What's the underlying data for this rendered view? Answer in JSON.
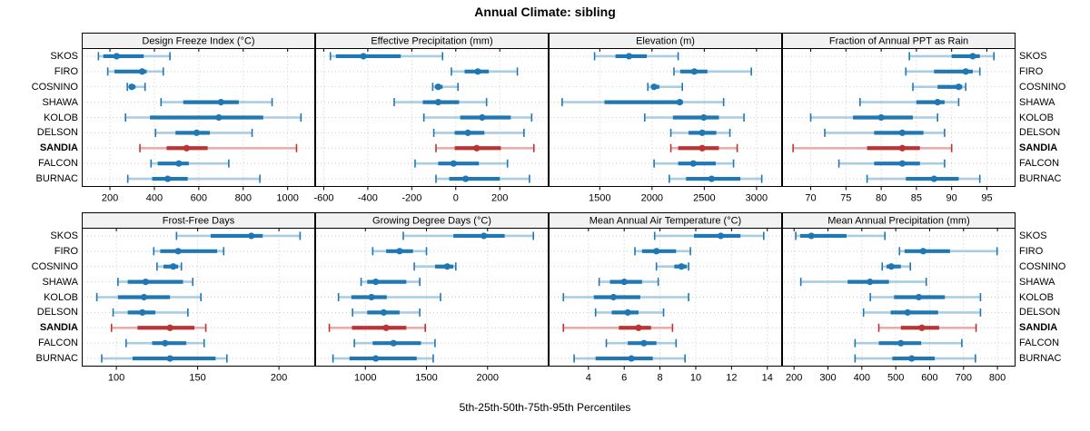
{
  "title": "Annual Climate: sibling",
  "caption": "5th-25th-50th-75th-95th Percentiles",
  "sites": [
    "SKOS",
    "FIRO",
    "COSNINO",
    "SHAWA",
    "KOLOB",
    "DELSON",
    "SANDIA",
    "FALCON",
    "BURNAC"
  ],
  "highlight_site": "SANDIA",
  "colors": {
    "blue": "#1F77B4",
    "blue_light": "#A9CEE3",
    "red": "#BB3333",
    "red_light": "#E6AFAB",
    "grid": "#C9C9C9",
    "header_bg": "#F2F2F2",
    "border": "#000000"
  },
  "chart_data": [
    {
      "type": "percentile-range",
      "title": "Design Freeze Index (°C)",
      "row": 0,
      "col": 0,
      "xlim": [
        75,
        1122
      ],
      "ticks": [
        200,
        400,
        600,
        800,
        1000
      ],
      "percentile_labels": [
        "5th",
        "25th",
        "50th",
        "75th",
        "95th"
      ],
      "grid": true,
      "series": [
        {
          "name": "SKOS",
          "percentiles": [
            148,
            170,
            230,
            352,
            470
          ]
        },
        {
          "name": "FIRO",
          "percentiles": [
            190,
            220,
            345,
            365,
            440
          ]
        },
        {
          "name": "COSNINO",
          "percentiles": [
            278,
            288,
            298,
            315,
            358
          ]
        },
        {
          "name": "SHAWA",
          "percentiles": [
            430,
            530,
            700,
            780,
            930
          ]
        },
        {
          "name": "KOLOB",
          "percentiles": [
            270,
            380,
            690,
            890,
            1060
          ]
        },
        {
          "name": "DELSON",
          "percentiles": [
            405,
            495,
            590,
            650,
            840
          ]
        },
        {
          "name": "SANDIA",
          "percentiles": [
            335,
            455,
            545,
            640,
            1040
          ]
        },
        {
          "name": "FALCON",
          "percentiles": [
            385,
            415,
            510,
            555,
            735
          ]
        },
        {
          "name": "BURNAC",
          "percentiles": [
            280,
            390,
            460,
            550,
            875
          ]
        }
      ]
    },
    {
      "type": "percentile-range",
      "title": "Effective Precipitation (mm)",
      "row": 0,
      "col": 1,
      "xlim": [
        -637,
        420
      ],
      "ticks": [
        -600,
        -400,
        -200,
        0,
        200
      ],
      "percentile_labels": [
        "5th",
        "25th",
        "50th",
        "75th",
        "95th"
      ],
      "grid": true,
      "series": [
        {
          "name": "SKOS",
          "percentiles": [
            -570,
            -545,
            -420,
            -250,
            -60
          ]
        },
        {
          "name": "FIRO",
          "percentiles": [
            -20,
            40,
            100,
            150,
            280
          ]
        },
        {
          "name": "COSNINO",
          "percentiles": [
            -105,
            -95,
            -80,
            -60,
            10
          ]
        },
        {
          "name": "SHAWA",
          "percentiles": [
            -280,
            -150,
            -80,
            15,
            140
          ]
        },
        {
          "name": "KOLOB",
          "percentiles": [
            -145,
            20,
            120,
            250,
            345
          ]
        },
        {
          "name": "DELSON",
          "percentiles": [
            -100,
            -5,
            55,
            130,
            310
          ]
        },
        {
          "name": "SANDIA",
          "percentiles": [
            -90,
            -5,
            95,
            205,
            355
          ]
        },
        {
          "name": "FALCON",
          "percentiles": [
            -185,
            -80,
            -10,
            105,
            235
          ]
        },
        {
          "name": "BURNAC",
          "percentiles": [
            -90,
            -30,
            45,
            200,
            335
          ]
        }
      ]
    },
    {
      "type": "percentile-range",
      "title": "Elevation (m)",
      "row": 0,
      "col": 2,
      "xlim": [
        1015,
        3240
      ],
      "ticks": [
        1500,
        2000,
        2500,
        3000
      ],
      "percentile_labels": [
        "5th",
        "25th",
        "50th",
        "75th",
        "95th"
      ],
      "grid": true,
      "series": [
        {
          "name": "SKOS",
          "percentiles": [
            1450,
            1650,
            1780,
            1950,
            2250
          ]
        },
        {
          "name": "FIRO",
          "percentiles": [
            2210,
            2270,
            2405,
            2530,
            2950
          ]
        },
        {
          "name": "COSNINO",
          "percentiles": [
            1960,
            1990,
            2020,
            2070,
            2290
          ]
        },
        {
          "name": "SHAWA",
          "percentiles": [
            1140,
            1545,
            2265,
            2295,
            2685
          ]
        },
        {
          "name": "KOLOB",
          "percentiles": [
            1930,
            2200,
            2495,
            2640,
            2880
          ]
        },
        {
          "name": "DELSON",
          "percentiles": [
            2180,
            2350,
            2480,
            2615,
            2745
          ]
        },
        {
          "name": "SANDIA",
          "percentiles": [
            2180,
            2250,
            2480,
            2640,
            2815
          ]
        },
        {
          "name": "FALCON",
          "percentiles": [
            2020,
            2250,
            2395,
            2610,
            2780
          ]
        },
        {
          "name": "BURNAC",
          "percentiles": [
            2165,
            2325,
            2570,
            2845,
            3050
          ]
        }
      ]
    },
    {
      "type": "percentile-range",
      "title": "Fraction of Annual PPT as Rain",
      "row": 0,
      "col": 3,
      "xlim": [
        66,
        99
      ],
      "ticks": [
        70,
        75,
        80,
        85,
        90,
        95
      ],
      "percentile_labels": [
        "5th",
        "25th",
        "50th",
        "75th",
        "95th"
      ],
      "grid": true,
      "series": [
        {
          "name": "SKOS",
          "percentiles": [
            84,
            90,
            93,
            94,
            96
          ]
        },
        {
          "name": "FIRO",
          "percentiles": [
            83.5,
            87.5,
            92,
            93,
            94
          ]
        },
        {
          "name": "COSNINO",
          "percentiles": [
            84.5,
            88,
            91,
            91.5,
            92
          ]
        },
        {
          "name": "SHAWA",
          "percentiles": [
            77,
            85,
            88,
            89,
            91
          ]
        },
        {
          "name": "KOLOB",
          "percentiles": [
            70,
            76,
            80,
            84.5,
            88
          ]
        },
        {
          "name": "DELSON",
          "percentiles": [
            72,
            79,
            83,
            86,
            89
          ]
        },
        {
          "name": "SANDIA",
          "percentiles": [
            67.5,
            78,
            83,
            85.5,
            90
          ]
        },
        {
          "name": "FALCON",
          "percentiles": [
            74,
            79,
            83,
            85.5,
            89
          ]
        },
        {
          "name": "BURNAC",
          "percentiles": [
            78,
            83.5,
            87.5,
            91,
            94
          ]
        }
      ]
    },
    {
      "type": "percentile-range",
      "title": "Frost-Free Days",
      "row": 1,
      "col": 0,
      "xlim": [
        79,
        222
      ],
      "ticks": [
        100,
        150,
        200
      ],
      "percentile_labels": [
        "5th",
        "25th",
        "50th",
        "75th",
        "95th"
      ],
      "grid": true,
      "series": [
        {
          "name": "SKOS",
          "percentiles": [
            137,
            158,
            183,
            190,
            213
          ]
        },
        {
          "name": "FIRO",
          "percentiles": [
            123,
            127,
            138,
            162,
            166
          ]
        },
        {
          "name": "COSNINO",
          "percentiles": [
            125,
            129,
            135,
            138,
            140
          ]
        },
        {
          "name": "SHAWA",
          "percentiles": [
            101,
            107,
            118,
            141,
            147
          ]
        },
        {
          "name": "KOLOB",
          "percentiles": [
            88,
            101,
            117,
            133,
            152
          ]
        },
        {
          "name": "DELSON",
          "percentiles": [
            98,
            107,
            116,
            124,
            144
          ]
        },
        {
          "name": "SANDIA",
          "percentiles": [
            97,
            113,
            133,
            148,
            155
          ]
        },
        {
          "name": "FALCON",
          "percentiles": [
            106,
            122,
            130,
            143,
            154
          ]
        },
        {
          "name": "BURNAC",
          "percentiles": [
            91,
            110,
            133,
            161,
            168
          ]
        }
      ]
    },
    {
      "type": "percentile-range",
      "title": "Growing Degree Days (°C)",
      "row": 1,
      "col": 1,
      "xlim": [
        593,
        2496
      ],
      "ticks": [
        1000,
        1500,
        2000
      ],
      "percentile_labels": [
        "5th",
        "25th",
        "50th",
        "75th",
        "95th"
      ],
      "grid": true,
      "series": [
        {
          "name": "SKOS",
          "percentiles": [
            1310,
            1720,
            1970,
            2140,
            2375
          ]
        },
        {
          "name": "FIRO",
          "percentiles": [
            1060,
            1170,
            1280,
            1390,
            1500
          ]
        },
        {
          "name": "COSNINO",
          "percentiles": [
            1400,
            1570,
            1670,
            1720,
            1740
          ]
        },
        {
          "name": "SHAWA",
          "percentiles": [
            965,
            1015,
            1085,
            1335,
            1445
          ]
        },
        {
          "name": "KOLOB",
          "percentiles": [
            780,
            885,
            1050,
            1175,
            1615
          ]
        },
        {
          "name": "DELSON",
          "percentiles": [
            895,
            1015,
            1150,
            1280,
            1445
          ]
        },
        {
          "name": "SANDIA",
          "percentiles": [
            705,
            890,
            1170,
            1335,
            1490
          ]
        },
        {
          "name": "FALCON",
          "percentiles": [
            910,
            1060,
            1230,
            1455,
            1570
          ]
        },
        {
          "name": "BURNAC",
          "percentiles": [
            735,
            870,
            1085,
            1420,
            1555
          ]
        }
      ]
    },
    {
      "type": "percentile-range",
      "title": "Mean Annual Air Temperature (°C)",
      "row": 1,
      "col": 2,
      "xlim": [
        1.8,
        14.8
      ],
      "ticks": [
        4,
        6,
        8,
        10,
        12,
        14
      ],
      "percentile_labels": [
        "5th",
        "25th",
        "50th",
        "75th",
        "95th"
      ],
      "grid": true,
      "series": [
        {
          "name": "SKOS",
          "percentiles": [
            7.7,
            9.9,
            11.4,
            12.5,
            13.8
          ]
        },
        {
          "name": "FIRO",
          "percentiles": [
            6.6,
            7.0,
            7.8,
            8.9,
            9.7
          ]
        },
        {
          "name": "COSNINO",
          "percentiles": [
            7.8,
            8.8,
            9.2,
            9.5,
            9.6
          ]
        },
        {
          "name": "SHAWA",
          "percentiles": [
            4.6,
            5.2,
            6.0,
            7.0,
            7.9
          ]
        },
        {
          "name": "KOLOB",
          "percentiles": [
            2.6,
            4.3,
            5.4,
            6.9,
            9.6
          ]
        },
        {
          "name": "DELSON",
          "percentiles": [
            4.4,
            5.3,
            6.2,
            6.8,
            8.2
          ]
        },
        {
          "name": "SANDIA",
          "percentiles": [
            2.6,
            5.7,
            6.8,
            7.5,
            8.7
          ]
        },
        {
          "name": "FALCON",
          "percentiles": [
            5.0,
            6.2,
            7.1,
            7.8,
            8.9
          ]
        },
        {
          "name": "BURNAC",
          "percentiles": [
            3.2,
            4.4,
            6.4,
            7.6,
            9.4
          ]
        }
      ]
    },
    {
      "type": "percentile-range",
      "title": "Mean Annual Precipitation (mm)",
      "row": 1,
      "col": 3,
      "xlim": [
        166,
        852
      ],
      "ticks": [
        200,
        300,
        400,
        500,
        600,
        700,
        800
      ],
      "percentile_labels": [
        "5th",
        "25th",
        "50th",
        "75th",
        "95th"
      ],
      "grid": true,
      "series": [
        {
          "name": "SKOS",
          "percentiles": [
            205,
            218,
            251,
            355,
            468
          ]
        },
        {
          "name": "FIRO",
          "percentiles": [
            511,
            526,
            581,
            660,
            799
          ]
        },
        {
          "name": "COSNINO",
          "percentiles": [
            460,
            473,
            487,
            515,
            543
          ]
        },
        {
          "name": "SHAWA",
          "percentiles": [
            220,
            358,
            424,
            480,
            590
          ]
        },
        {
          "name": "KOLOB",
          "percentiles": [
            425,
            495,
            568,
            645,
            750
          ]
        },
        {
          "name": "DELSON",
          "percentiles": [
            405,
            485,
            535,
            625,
            750
          ]
        },
        {
          "name": "SANDIA",
          "percentiles": [
            450,
            515,
            577,
            628,
            737
          ]
        },
        {
          "name": "FALCON",
          "percentiles": [
            380,
            450,
            515,
            575,
            695
          ]
        },
        {
          "name": "BURNAC",
          "percentiles": [
            380,
            490,
            547,
            615,
            735
          ]
        }
      ]
    }
  ]
}
